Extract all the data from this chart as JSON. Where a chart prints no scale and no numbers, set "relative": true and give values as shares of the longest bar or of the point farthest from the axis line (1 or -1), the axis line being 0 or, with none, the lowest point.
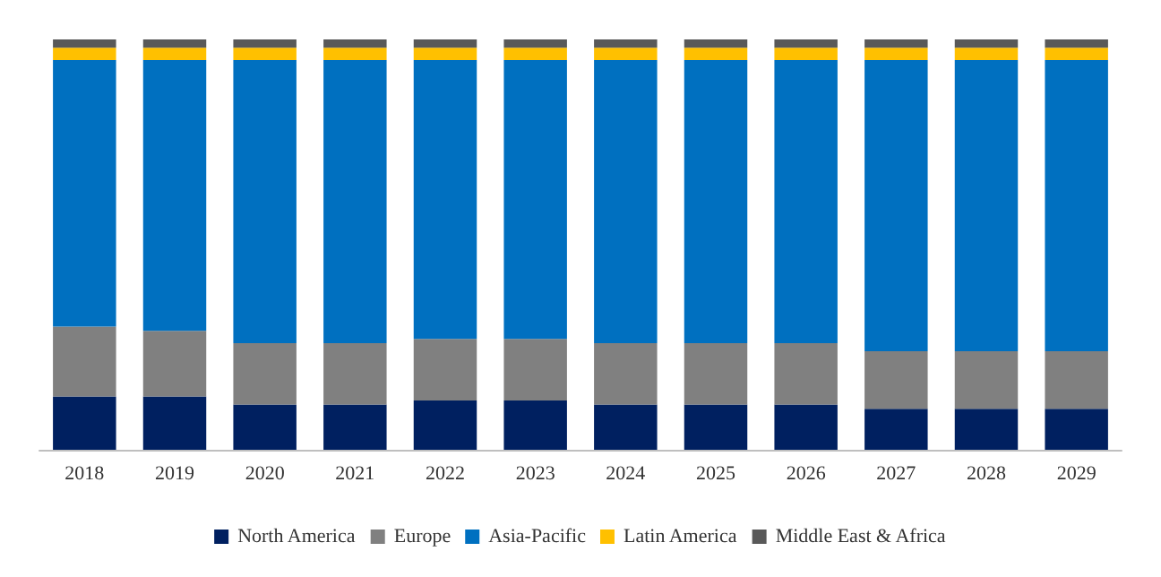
{
  "chart_data": {
    "type": "bar",
    "stacked": true,
    "relative": true,
    "legend": "bottom",
    "grid": false,
    "categories": [
      "2018",
      "2019",
      "2020",
      "2021",
      "2022",
      "2023",
      "2024",
      "2025",
      "2026",
      "2027",
      "2028",
      "2029"
    ],
    "series": [
      {
        "name": "North America",
        "color": "#002060",
        "values": [
          0.13,
          0.13,
          0.11,
          0.11,
          0.12,
          0.12,
          0.11,
          0.11,
          0.11,
          0.1,
          0.1,
          0.1
        ]
      },
      {
        "name": "Europe",
        "color": "#808080",
        "values": [
          0.17,
          0.16,
          0.15,
          0.15,
          0.15,
          0.15,
          0.15,
          0.15,
          0.15,
          0.14,
          0.14,
          0.14
        ]
      },
      {
        "name": "Asia-Pacific",
        "color": "#0070c0",
        "values": [
          0.65,
          0.66,
          0.69,
          0.69,
          0.68,
          0.68,
          0.69,
          0.69,
          0.69,
          0.71,
          0.71,
          0.71
        ]
      },
      {
        "name": "Latin America",
        "color": "#ffc000",
        "values": [
          0.03,
          0.03,
          0.03,
          0.03,
          0.03,
          0.03,
          0.03,
          0.03,
          0.03,
          0.03,
          0.03,
          0.03
        ]
      },
      {
        "name": "Middle East & Africa",
        "color": "#595959",
        "values": [
          0.02,
          0.02,
          0.02,
          0.02,
          0.02,
          0.02,
          0.02,
          0.02,
          0.02,
          0.02,
          0.02,
          0.02
        ]
      }
    ]
  }
}
